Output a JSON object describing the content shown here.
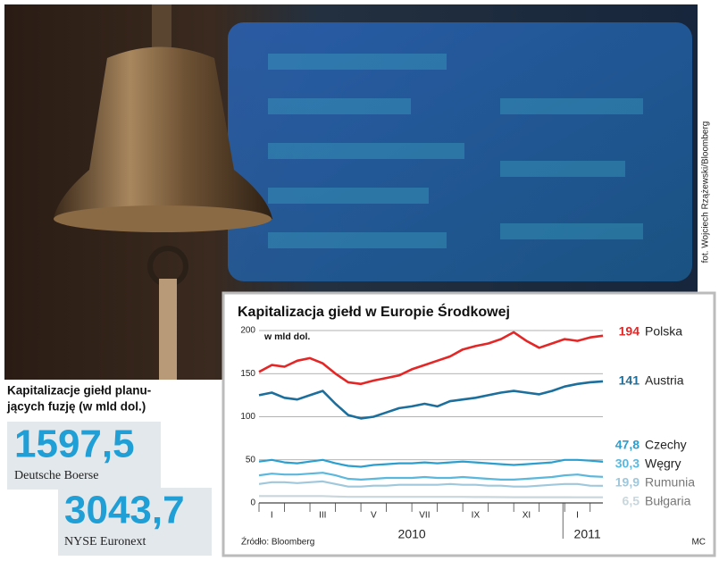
{
  "photo_credit": "fot. Wojciech Rzążewski/Bloomberg",
  "left_panel": {
    "title_lines": [
      "Kapitalizacje giełd planu-",
      "jących fuzję (w mld dol.)"
    ],
    "items": [
      {
        "value": "1597,5",
        "label": "Deutsche Boerse"
      },
      {
        "value": "3043,7",
        "label": "NYSE Euronext"
      }
    ]
  },
  "chart_data": {
    "type": "line",
    "title": "Kapitalizacja giełd w Europie Środkowej",
    "unit_label": "w mld dol.",
    "categories": [
      "I",
      null,
      null,
      null,
      "III",
      null,
      null,
      null,
      "V",
      null,
      null,
      null,
      "VII",
      null,
      null,
      null,
      "IX",
      null,
      null,
      null,
      "XI",
      null,
      null,
      null,
      "I",
      null,
      null,
      null
    ],
    "years": [
      "2010",
      "2011"
    ],
    "ylim": [
      0,
      200
    ],
    "yticks": [
      0,
      50,
      100,
      150,
      200
    ],
    "grid": true,
    "series": [
      {
        "name": "Polska",
        "color": "#e32626",
        "end_label": "194",
        "values": [
          152,
          160,
          158,
          165,
          168,
          162,
          150,
          140,
          138,
          142,
          145,
          148,
          155,
          160,
          165,
          170,
          178,
          182,
          185,
          190,
          198,
          188,
          180,
          185,
          190,
          188,
          192,
          194
        ]
      },
      {
        "name": "Austria",
        "color": "#1c6f9c",
        "end_label": "141",
        "values": [
          125,
          128,
          122,
          120,
          125,
          130,
          115,
          102,
          98,
          100,
          105,
          110,
          112,
          115,
          112,
          118,
          120,
          122,
          125,
          128,
          130,
          128,
          126,
          130,
          135,
          138,
          140,
          141
        ]
      },
      {
        "name": "Czechy",
        "color": "#2a9fd0",
        "end_label": "47,8",
        "values": [
          48,
          50,
          47,
          46,
          48,
          50,
          46,
          43,
          42,
          44,
          45,
          46,
          46,
          47,
          46,
          47,
          48,
          47,
          46,
          45,
          44,
          45,
          46,
          47,
          50,
          50,
          49,
          47.8
        ]
      },
      {
        "name": "Węgry",
        "color": "#5bb8dd",
        "end_label": "30,3",
        "values": [
          32,
          34,
          33,
          33,
          34,
          35,
          32,
          28,
          27,
          28,
          29,
          29,
          29,
          30,
          29,
          29,
          30,
          29,
          28,
          27,
          27,
          28,
          29,
          30,
          32,
          33,
          31,
          30.3
        ]
      },
      {
        "name": "Rumunia",
        "color": "#9fc8dc",
        "end_label": "19,9",
        "values": [
          22,
          24,
          24,
          23,
          24,
          25,
          22,
          19,
          19,
          20,
          20,
          21,
          21,
          21,
          21,
          22,
          21,
          21,
          20,
          20,
          19,
          19,
          20,
          21,
          22,
          22,
          20,
          19.9
        ]
      },
      {
        "name": "Bułgaria",
        "color": "#c9d6dc",
        "end_label": "6,5",
        "values": [
          8,
          8,
          8,
          8,
          8,
          8,
          7.5,
          7,
          7,
          7,
          7,
          7,
          7,
          7,
          7,
          7,
          7,
          6.8,
          6.8,
          6.7,
          6.6,
          6.6,
          6.6,
          6.6,
          6.6,
          6.5,
          6.5,
          6.5
        ]
      }
    ],
    "source": "Źródło: Bloomberg",
    "author": "MC"
  }
}
